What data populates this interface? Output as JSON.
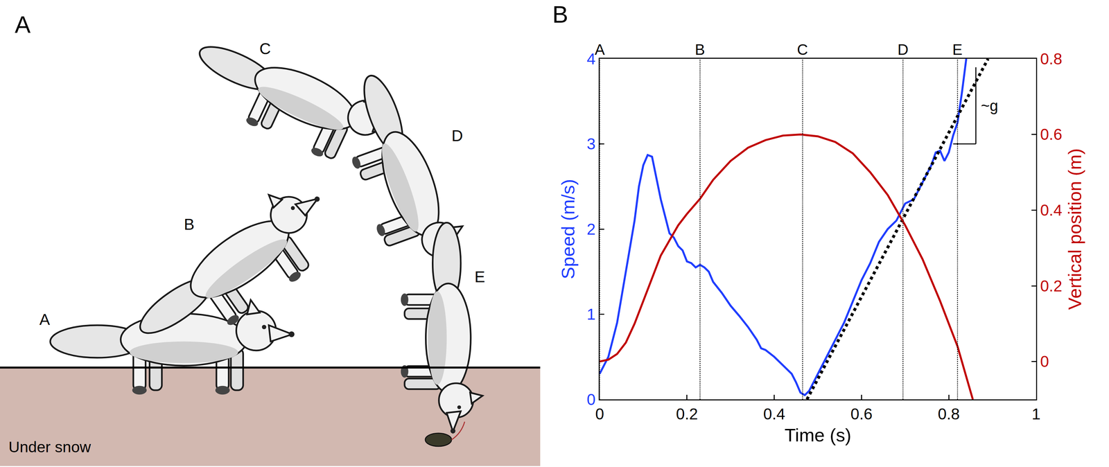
{
  "illustration": {
    "panel_label": "A",
    "poses": [
      "A",
      "B",
      "C",
      "D",
      "E"
    ],
    "ground_label": "Under snow"
  },
  "chart_data": {
    "type": "line",
    "panel_label": "B",
    "xlabel": "Time (s)",
    "ylabel": "Speed (m/s)",
    "y2label": "Vertical position (m)",
    "xlim": [
      0,
      1
    ],
    "xticks": [
      0,
      0.2,
      0.4,
      0.6,
      0.8,
      1
    ],
    "ylim": [
      0,
      4
    ],
    "yticks": [
      0,
      1,
      2,
      3,
      4
    ],
    "y2lim": [
      -0.1,
      0.8
    ],
    "y2ticks": [
      0,
      0.2,
      0.4,
      0.6,
      0.8
    ],
    "grid": false,
    "series": [
      {
        "color": "#1f3dff",
        "line_style": "solid",
        "x": [
          0,
          0.02,
          0.04,
          0.06,
          0.08,
          0.09,
          0.1,
          0.11,
          0.12,
          0.13,
          0.14,
          0.15,
          0.16,
          0.17,
          0.18,
          0.19,
          0.2,
          0.21,
          0.22,
          0.23,
          0.24,
          0.25,
          0.26,
          0.28,
          0.3,
          0.32,
          0.34,
          0.36,
          0.37,
          0.38,
          0.4,
          0.42,
          0.44,
          0.45,
          0.46,
          0.47,
          0.48,
          0.5,
          0.52,
          0.54,
          0.56,
          0.58,
          0.6,
          0.62,
          0.64,
          0.66,
          0.68,
          0.7,
          0.72,
          0.74,
          0.76,
          0.77,
          0.78,
          0.79,
          0.8,
          0.81,
          0.82,
          0.83,
          0.84
        ],
        "values": [
          0.3,
          0.5,
          0.9,
          1.5,
          2.1,
          2.5,
          2.75,
          2.87,
          2.85,
          2.6,
          2.35,
          2.15,
          1.95,
          1.9,
          1.8,
          1.75,
          1.62,
          1.6,
          1.55,
          1.58,
          1.55,
          1.5,
          1.38,
          1.25,
          1.1,
          0.98,
          0.85,
          0.7,
          0.6,
          0.58,
          0.5,
          0.4,
          0.3,
          0.2,
          0.08,
          0.05,
          0.1,
          0.3,
          0.5,
          0.7,
          0.9,
          1.15,
          1.4,
          1.6,
          1.85,
          2.0,
          2.1,
          2.3,
          2.35,
          2.55,
          2.75,
          2.9,
          2.92,
          2.8,
          2.9,
          3.1,
          3.25,
          3.6,
          4.0
        ]
      },
      {
        "color": "#c00000",
        "line_style": "solid",
        "axis": "y2",
        "x": [
          0,
          0.02,
          0.04,
          0.06,
          0.08,
          0.1,
          0.12,
          0.14,
          0.16,
          0.18,
          0.2,
          0.23,
          0.26,
          0.3,
          0.34,
          0.38,
          0.42,
          0.46,
          0.5,
          0.54,
          0.58,
          0.62,
          0.66,
          0.7,
          0.74,
          0.78,
          0.8,
          0.82,
          0.84,
          0.855
        ],
        "values": [
          0,
          0.005,
          0.02,
          0.05,
          0.1,
          0.16,
          0.22,
          0.28,
          0.32,
          0.36,
          0.39,
          0.43,
          0.48,
          0.53,
          0.565,
          0.585,
          0.597,
          0.6,
          0.595,
          0.58,
          0.55,
          0.5,
          0.44,
          0.36,
          0.27,
          0.16,
          0.1,
          0.04,
          -0.04,
          -0.1
        ]
      },
      {
        "color": "#000000",
        "line_style": "dotted",
        "x": [
          0.475,
          0.89
        ],
        "values": [
          0,
          4
        ]
      }
    ],
    "events": [
      {
        "label": "A",
        "x": 0
      },
      {
        "label": "B",
        "x": 0.23
      },
      {
        "label": "C",
        "x": 0.465
      },
      {
        "label": "D",
        "x": 0.695
      },
      {
        "label": "E",
        "x": 0.82
      }
    ],
    "annotations": [
      {
        "text": "~g",
        "x": 0.872,
        "y": 3.45,
        "bracket": {
          "x0": 0.81,
          "x1": 0.862,
          "y0": 3.0,
          "y1": 3.9
        }
      }
    ]
  }
}
